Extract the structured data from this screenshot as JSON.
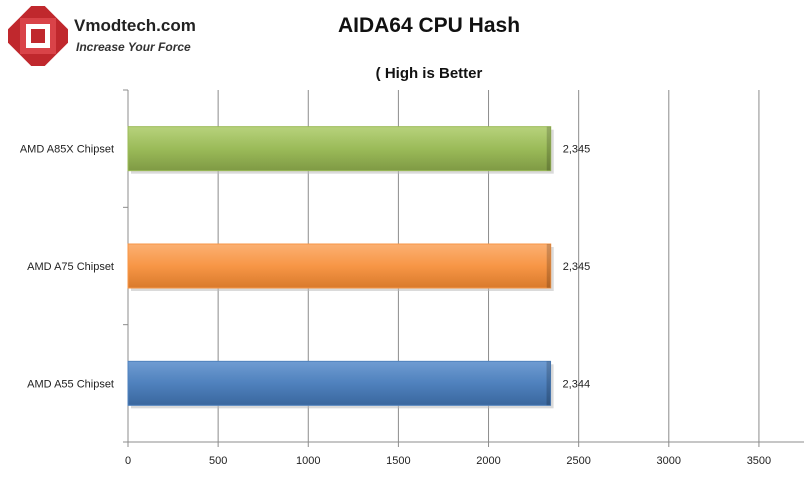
{
  "header": {
    "logo_name": "Vmodtech.com",
    "logo_tagline": "Increase Your Force"
  },
  "chart_data": {
    "type": "bar",
    "orientation": "horizontal",
    "title": "AIDA64 CPU Hash",
    "subtitle": "( High is Better",
    "categories": [
      "AMD A85X Chipset",
      "AMD A75 Chipset",
      "AMD A55 Chipset"
    ],
    "values": [
      2345,
      2345,
      2344
    ],
    "data_labels": [
      "2,345",
      "2,345",
      "2,344"
    ],
    "colors": [
      "#9bbb59",
      "#f79646",
      "#4f81bd"
    ],
    "xlim": [
      0,
      3750
    ],
    "xticks": [
      0,
      500,
      1000,
      1500,
      2000,
      2500,
      3000,
      3500
    ],
    "grid": true,
    "legend": "none"
  }
}
